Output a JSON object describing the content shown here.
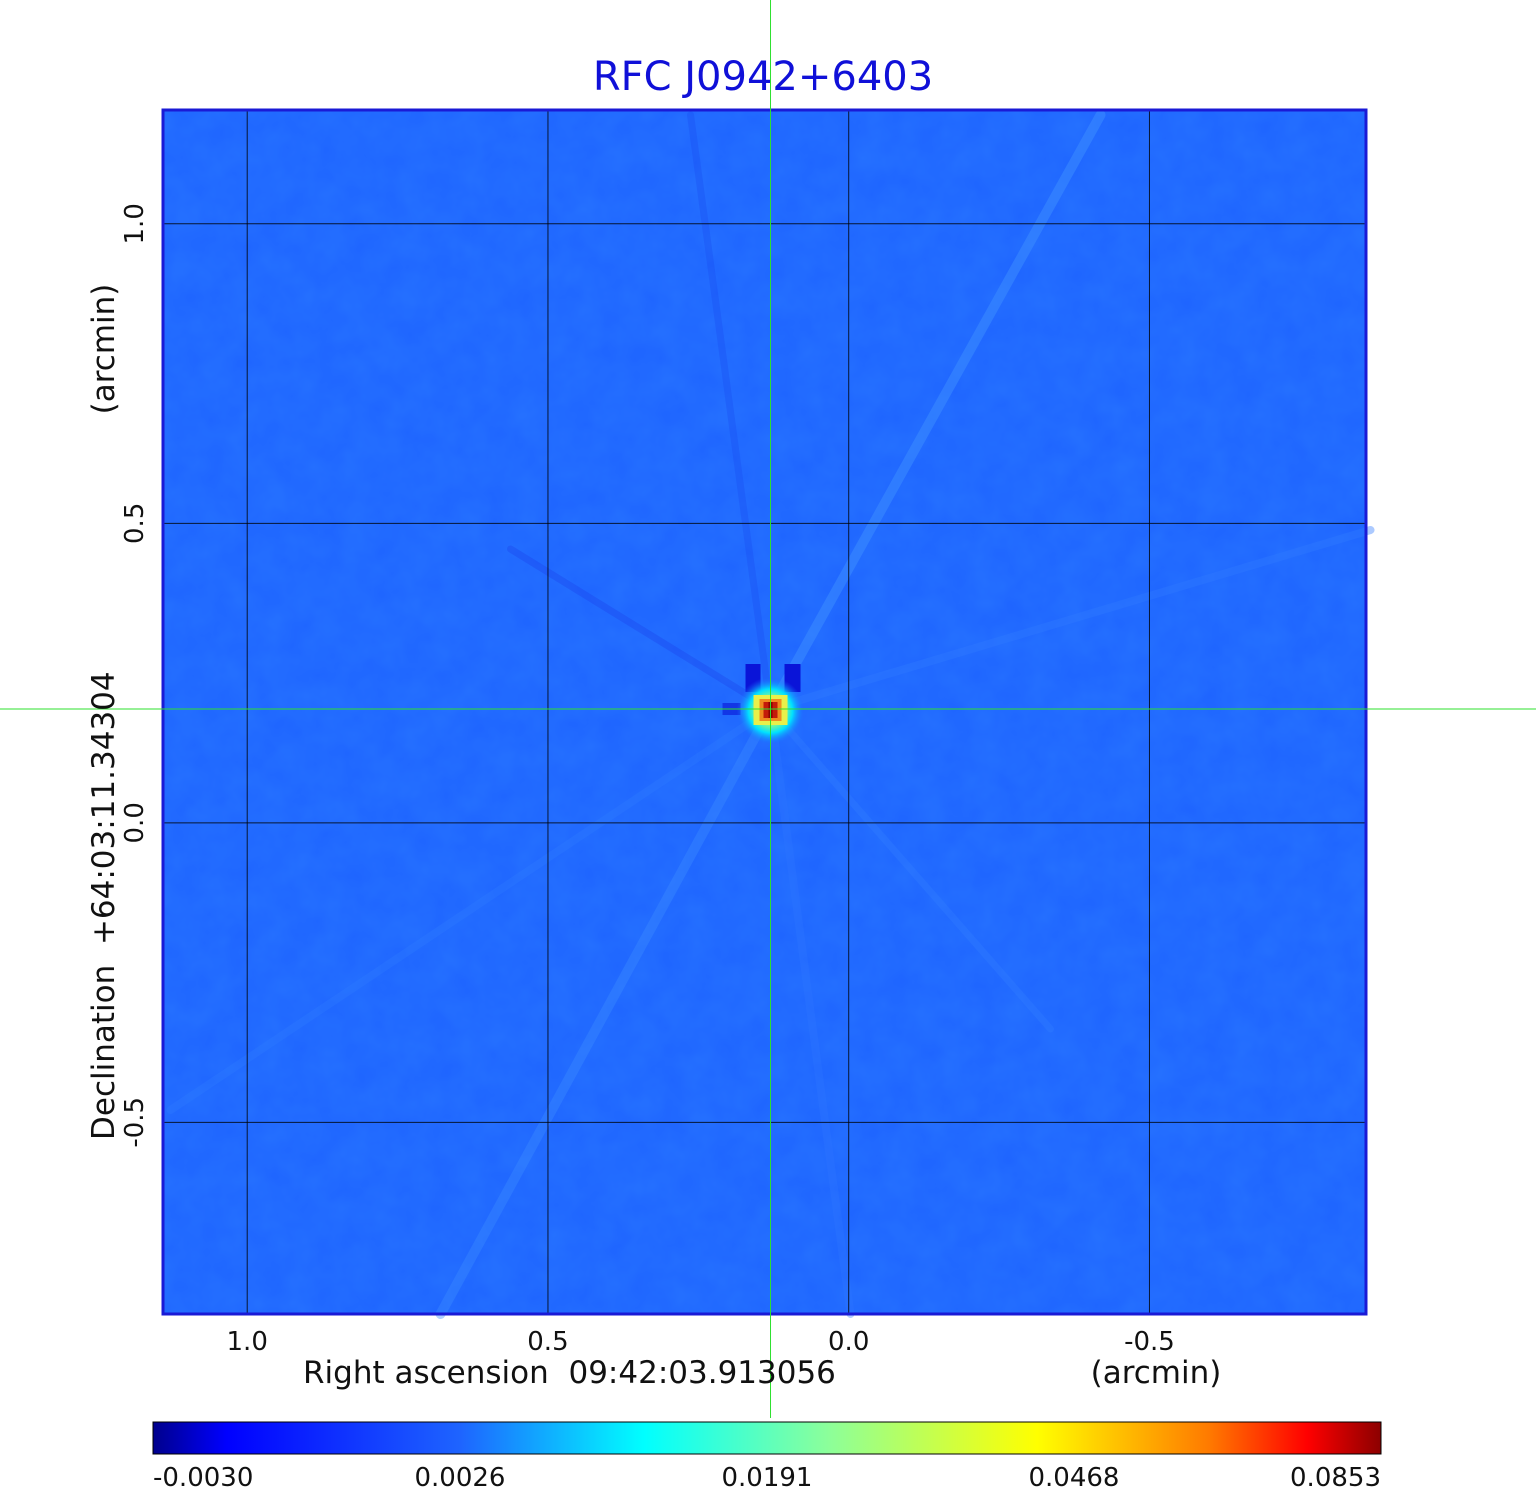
{
  "chart_data": {
    "type": "heatmap",
    "title": "RFC J0942+6403",
    "xlabel": "Right ascension  09:42:03.913056",
    "xunit": "(arcmin)",
    "ylabel": "Declination  +64:03:11.34304",
    "yunit": "(arcmin)",
    "x_ticks": [
      "1.0",
      "0.5",
      "0.0",
      "-0.5"
    ],
    "y_ticks": [
      "1.0",
      "0.5",
      "0.0",
      "-0.5"
    ],
    "x_tick_values": [
      1.0,
      0.5,
      0.0,
      -0.5
    ],
    "y_tick_values": [
      1.0,
      0.5,
      0.0,
      -0.5
    ],
    "xlim": [
      1.14,
      -0.86
    ],
    "ylim": [
      -0.82,
      1.19
    ],
    "grid": true,
    "crosshair": {
      "x": 0.13,
      "y": 0.19
    },
    "source_peak": {
      "x": 0.13,
      "y": 0.19,
      "value": 0.0853
    },
    "colormap": "jet",
    "colorbar": {
      "ticks": [
        "-0.0030",
        "0.0026",
        "0.0191",
        "0.0468",
        "0.0853"
      ],
      "values": [
        -0.003,
        0.0026,
        0.0191,
        0.0468,
        0.0853
      ],
      "scale": "non-linear"
    },
    "colors": {
      "background_field": "#1e64ff",
      "title": "#1010d8",
      "frame": "#1a1ad6",
      "crosshair": "#2ee02e",
      "grid": "#000000"
    }
  }
}
